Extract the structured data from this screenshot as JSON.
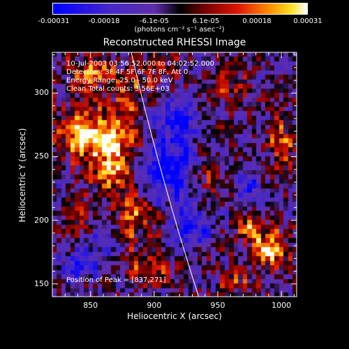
{
  "chart_data": {
    "type": "heatmap",
    "title": "Reconstructed RHESSI Image",
    "xlabel": "Heliocentric X (arcsec)",
    "ylabel": "Heliocentric Y (arcsec)",
    "xlim": [
      820,
      1012
    ],
    "ylim": [
      140,
      332
    ],
    "xticks": [
      850,
      900,
      950,
      1000
    ],
    "xtick_labels": [
      "850",
      "900",
      "950",
      "1000"
    ],
    "yticks": [
      150,
      200,
      250,
      300
    ],
    "ytick_labels": [
      "150",
      "200",
      "250",
      "300"
    ],
    "colorbar": {
      "range": [
        -0.00031,
        0.00031
      ],
      "ticks": [
        -0.00031,
        -0.00018,
        -6.1e-05,
        6.1e-05,
        0.00018,
        0.00031
      ],
      "tick_labels": [
        "-0.00031",
        "-0.00018",
        "-6.1e-05",
        "6.1e-05",
        "0.00018",
        "0.00031"
      ],
      "units_label": "(photons cm⁻² s⁻¹ asec⁻²)"
    },
    "annotations": [
      "10-Jul-2003 03:56:52.000 to 04:02:52.000",
      "Detectors: 3F 4F 5F 6F 7F 8F, Att 0",
      "Energy Range: 25.0 - 50.0 keV",
      "Clean     Total counts: 3.56E+03",
      "Position of Peak = [837,271]"
    ],
    "limb_x_at_top": 882,
    "limb_x_at_bottom": 935,
    "peak_position": [
      837,
      271
    ],
    "blobs": [
      {
        "x": 845,
        "y": 268,
        "amp": 1.0,
        "sx": 14,
        "sy": 14
      },
      {
        "x": 870,
        "y": 262,
        "amp": 0.9,
        "sx": 12,
        "sy": 12
      },
      {
        "x": 865,
        "y": 235,
        "amp": 0.85,
        "sx": 10,
        "sy": 10
      },
      {
        "x": 850,
        "y": 315,
        "amp": 0.7,
        "sx": 12,
        "sy": 10
      },
      {
        "x": 880,
        "y": 300,
        "amp": 0.6,
        "sx": 10,
        "sy": 12
      },
      {
        "x": 885,
        "y": 200,
        "amp": 0.65,
        "sx": 10,
        "sy": 14
      },
      {
        "x": 840,
        "y": 200,
        "amp": 0.4,
        "sx": 12,
        "sy": 10
      },
      {
        "x": 895,
        "y": 160,
        "amp": 0.5,
        "sx": 12,
        "sy": 8
      },
      {
        "x": 990,
        "y": 178,
        "amp": 0.95,
        "sx": 10,
        "sy": 10
      },
      {
        "x": 975,
        "y": 195,
        "amp": 0.6,
        "sx": 8,
        "sy": 8
      },
      {
        "x": 1000,
        "y": 260,
        "amp": 0.6,
        "sx": 8,
        "sy": 16
      },
      {
        "x": 960,
        "y": 305,
        "amp": 0.5,
        "sx": 12,
        "sy": 10
      },
      {
        "x": 945,
        "y": 235,
        "amp": 0.45,
        "sx": 10,
        "sy": 10
      },
      {
        "x": 965,
        "y": 150,
        "amp": 0.4,
        "sx": 10,
        "sy": 8
      },
      {
        "x": 905,
        "y": 322,
        "amp": 0.35,
        "sx": 10,
        "sy": 8
      },
      {
        "x": 912,
        "y": 240,
        "amp": -0.9,
        "sx": 14,
        "sy": 16
      },
      {
        "x": 930,
        "y": 195,
        "amp": -0.7,
        "sx": 10,
        "sy": 12
      },
      {
        "x": 920,
        "y": 280,
        "amp": -0.6,
        "sx": 12,
        "sy": 12
      },
      {
        "x": 840,
        "y": 165,
        "amp": -0.45,
        "sx": 14,
        "sy": 10
      },
      {
        "x": 975,
        "y": 230,
        "amp": -0.45,
        "sx": 8,
        "sy": 10
      },
      {
        "x": 860,
        "y": 185,
        "amp": -0.4,
        "sx": 10,
        "sy": 8
      }
    ]
  }
}
